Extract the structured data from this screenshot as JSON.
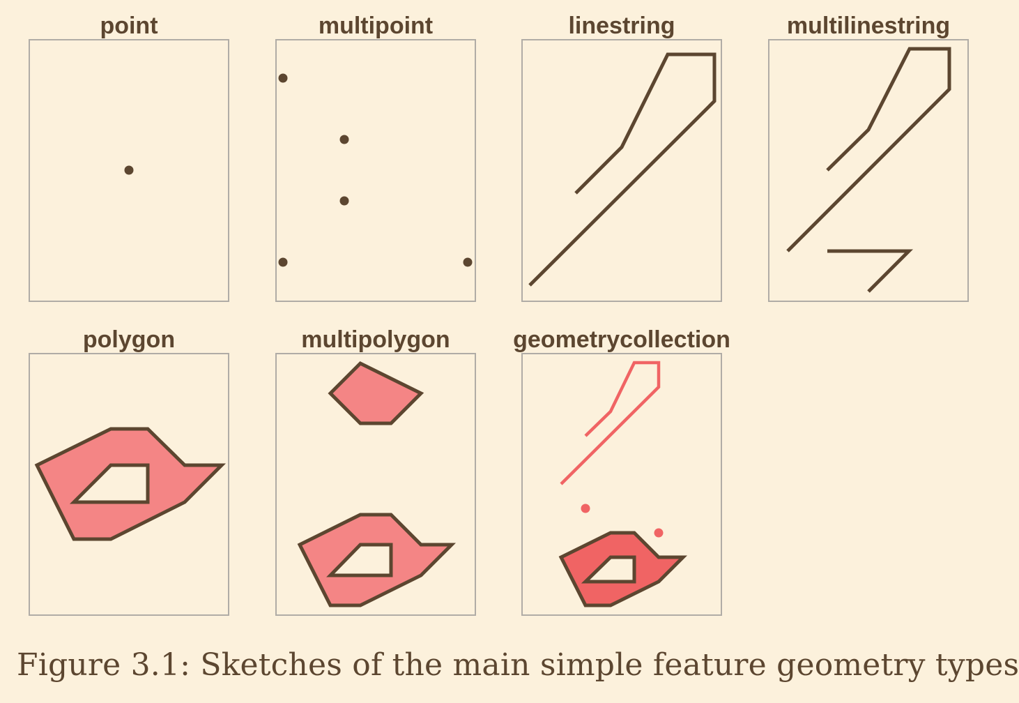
{
  "panels": [
    {
      "key": "point",
      "title": "point"
    },
    {
      "key": "multipoint",
      "title": "multipoint"
    },
    {
      "key": "linestring",
      "title": "linestring"
    },
    {
      "key": "multilinestring",
      "title": "multilinestring"
    },
    {
      "key": "polygon",
      "title": "polygon"
    },
    {
      "key": "multipolygon",
      "title": "multipolygon"
    },
    {
      "key": "geometrycollection",
      "title": "geometrycollection"
    }
  ],
  "caption": "Figure 3.1: Sketches of the main simple feature geometry types",
  "colors": {
    "background": "#fcf1dc",
    "frame": "#b0aca6",
    "dark": "#5c4630",
    "polygon_fill": "#f48585",
    "collection_fill": "#f06464",
    "collection_stroke": "#f06464"
  }
}
